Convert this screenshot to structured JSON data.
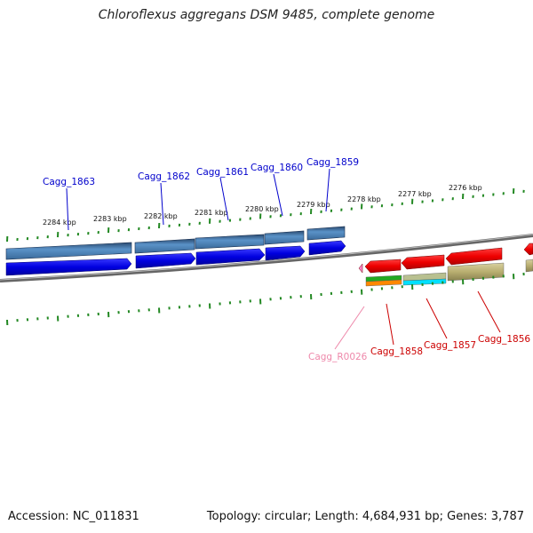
{
  "title": "Chloroflexus aggregans DSM 9485, complete genome",
  "footer": {
    "accession": "Accession: NC_011831",
    "summary": "Topology: circular; Length: 4,684,931 bp; Genes: 3,787"
  },
  "colors": {
    "forward_gene": "#0000dd",
    "forward_cds": "#4a86be",
    "reverse_gene": "#e00000",
    "rrna": "#ff77bb",
    "backbone": "#777777",
    "tick": "#228822",
    "label_blue": "#0000cc",
    "label_red": "#cc0000",
    "label_pink": "#ee88aa"
  },
  "kbp_labels": [
    "2284 kbp",
    "2283 kbp",
    "2282 kbp",
    "2281 kbp",
    "2280 kbp",
    "2279 kbp",
    "2278 kbp",
    "2277 kbp",
    "2276 kbp"
  ],
  "forward_genes": [
    "Cagg_1863",
    "Cagg_1862",
    "Cagg_1861",
    "Cagg_1860",
    "Cagg_1859"
  ],
  "reverse_genes": [
    "Cagg_R0026",
    "Cagg_1858",
    "Cagg_1857",
    "Cagg_1856"
  ]
}
